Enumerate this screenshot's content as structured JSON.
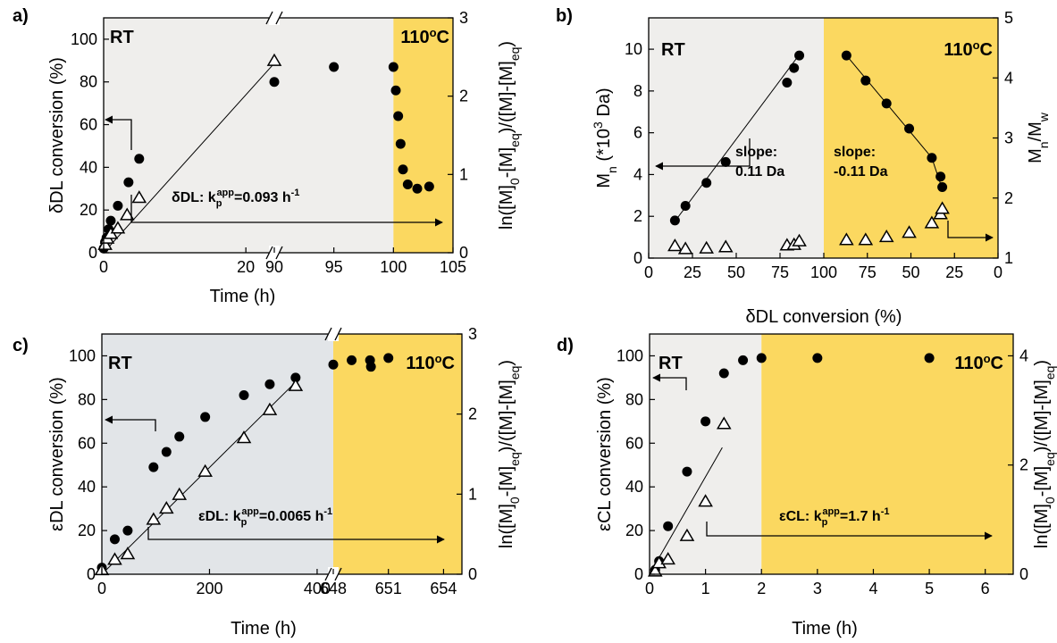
{
  "colors": {
    "rt_bg_grey": "#efeeec",
    "rt_bg_blue": "#e2e5e8",
    "hot_bg": "#fbd860",
    "ink": "#000000"
  },
  "panels": {
    "a": {
      "label": "a)",
      "rt": "RT",
      "temp": "110°C",
      "xlabel": "Time (h)",
      "ylabel": "δDL conversion (%)",
      "y2label": "ln([M]0-[M]eq)/([M]-[M]eq)",
      "xticks1": [
        "0",
        "20"
      ],
      "xticks2": [
        "90",
        "95",
        "100",
        "105"
      ],
      "yticks": [
        "0",
        "20",
        "40",
        "60",
        "80",
        "100"
      ],
      "y2ticks": [
        "0",
        "1",
        "2",
        "3"
      ],
      "annotation": "δDL: kpapp=0.093 h-1"
    },
    "b": {
      "label": "b)",
      "rt": "RT",
      "temp": "110°C",
      "xlabel": "δDL conversion (%)",
      "ylabel": "Mn (*10³ Da)",
      "y2label": "Mn/Mw",
      "xticks": [
        "0",
        "25",
        "50",
        "75",
        "100",
        "75",
        "50",
        "25",
        "0"
      ],
      "yticks": [
        "0",
        "2",
        "4",
        "6",
        "8",
        "10"
      ],
      "y2ticks": [
        "1",
        "2",
        "3",
        "4",
        "5"
      ],
      "slope1_a": "slope:",
      "slope1_b": "0.11 Da",
      "slope2_a": "slope:",
      "slope2_b": "-0.11 Da"
    },
    "c": {
      "label": "c)",
      "rt": "RT",
      "temp": "110°C",
      "xlabel": "Time (h)",
      "ylabel": "εDL conversion (%)",
      "y2label": "ln([M]0-[M]eq)/([M]-[M]eq)",
      "xticks1": [
        "0",
        "200",
        "400"
      ],
      "xticks2": [
        "648",
        "651",
        "654"
      ],
      "yticks": [
        "0",
        "20",
        "40",
        "60",
        "80",
        "100"
      ],
      "y2ticks": [
        "0",
        "1",
        "2",
        "3"
      ],
      "annotation": "εDL: kpapp=0.0065 h-1"
    },
    "d": {
      "label": "d)",
      "rt": "RT",
      "temp": "110°C",
      "xlabel": "Time (h)",
      "ylabel": "εCL conversion (%)",
      "y2label": "ln([M]0-[M]eq)/([M]-[M]eq)",
      "xticks": [
        "0",
        "1",
        "2",
        "3",
        "4",
        "5",
        "6"
      ],
      "yticks": [
        "0",
        "20",
        "40",
        "60",
        "80",
        "100"
      ],
      "y2ticks": [
        "0",
        "2",
        "4"
      ],
      "annotation": "εCL: kpapp=1.7 h-1"
    }
  },
  "chart_data": [
    {
      "panel": "a",
      "type": "scatter",
      "x_axis_break": [
        24,
        90
      ],
      "rt_to_110C_at": 100,
      "xlim": [
        0,
        105
      ],
      "ylim": [
        0,
        110
      ],
      "y2lim": [
        0,
        3
      ],
      "series": [
        {
          "marker": "filled circle",
          "axis": "left",
          "x": [
            0,
            0.2,
            0.4,
            0.7,
            1.0,
            2.0,
            3.5,
            5.0,
            24,
            30,
            95,
            100,
            100.2,
            100.4,
            100.6,
            100.8,
            101.2,
            102,
            103
          ],
          "y": [
            2,
            5,
            7,
            11,
            15,
            22,
            33,
            44,
            80,
            83,
            87,
            87,
            76,
            64,
            51,
            39,
            32,
            30,
            31
          ]
        },
        {
          "marker": "open triangle",
          "axis": "right",
          "x": [
            0.2,
            0.5,
            1.0,
            2.0,
            3.3,
            5.0,
            24
          ],
          "y": [
            0.1,
            0.18,
            0.24,
            0.31,
            0.48,
            0.7,
            2.45
          ]
        },
        {
          "marker": "line",
          "axis": "right",
          "x": [
            0,
            24
          ],
          "y": [
            0,
            2.42
          ]
        }
      ]
    },
    {
      "panel": "b",
      "type": "scatter",
      "rt_to_110C_at": "100% conversion",
      "ylim": [
        0,
        11.5
      ],
      "y2lim": [
        1,
        5
      ],
      "series": [
        {
          "marker": "filled circle",
          "axis": "left",
          "segment": "RT",
          "x": [
            15,
            21,
            33,
            44,
            79,
            83,
            86
          ],
          "y": [
            1.8,
            2.5,
            3.6,
            4.6,
            8.4,
            9.1,
            9.7
          ]
        },
        {
          "marker": "filled circle",
          "axis": "left",
          "segment": "110C",
          "x": [
            87,
            76,
            64,
            51,
            38,
            33,
            32
          ],
          "y": [
            9.7,
            8.5,
            7.4,
            6.2,
            4.8,
            3.9,
            3.4
          ]
        },
        {
          "marker": "open triangle",
          "axis": "right",
          "segment": "RT",
          "x": [
            15,
            21,
            33,
            44,
            79,
            83,
            86
          ],
          "y": [
            1.2,
            1.15,
            1.16,
            1.18,
            1.21,
            1.22,
            1.28
          ]
        },
        {
          "marker": "open triangle",
          "axis": "right",
          "segment": "110C",
          "x": [
            87,
            76,
            64,
            51,
            38,
            33,
            32
          ],
          "y": [
            1.3,
            1.3,
            1.35,
            1.42,
            1.58,
            1.73,
            1.82
          ]
        }
      ]
    },
    {
      "panel": "c",
      "type": "scatter",
      "x_axis_break": [
        400,
        648
      ],
      "rt_to_110C_at": 648,
      "xlim": [
        0,
        655
      ],
      "ylim": [
        0,
        110
      ],
      "y2lim": [
        0,
        3
      ],
      "series": [
        {
          "marker": "filled circle",
          "axis": "left",
          "x": [
            0,
            24,
            48,
            96,
            120,
            144,
            192,
            264,
            312,
            360,
            500,
            648,
            649,
            650,
            651
          ],
          "y": [
            3,
            16,
            20,
            49,
            56,
            63,
            72,
            82,
            87,
            90,
            95,
            96,
            98,
            98,
            99
          ]
        },
        {
          "marker": "open triangle",
          "axis": "right",
          "x": [
            0,
            24,
            48,
            96,
            120,
            144,
            192,
            264,
            312,
            360
          ],
          "y": [
            0.05,
            0.18,
            0.25,
            0.68,
            0.82,
            0.99,
            1.28,
            1.7,
            2.05,
            2.35
          ]
        },
        {
          "marker": "line",
          "axis": "right",
          "x": [
            0,
            360
          ],
          "y": [
            0,
            2.4
          ]
        }
      ]
    },
    {
      "panel": "d",
      "type": "scatter",
      "rt_to_110C_at": 2,
      "xlim": [
        0,
        6.5
      ],
      "ylim": [
        0,
        110
      ],
      "y2lim": [
        0,
        4.4
      ],
      "series": [
        {
          "marker": "filled circle",
          "axis": "left",
          "x": [
            0.1,
            0.17,
            0.33,
            0.67,
            1.0,
            1.33,
            1.67,
            2.0,
            3.0,
            5.0
          ],
          "y": [
            2,
            6,
            22,
            47,
            70,
            92,
            98,
            99,
            99,
            99
          ]
        },
        {
          "marker": "open triangle",
          "axis": "right",
          "x": [
            0.1,
            0.17,
            0.33,
            0.67,
            1.0,
            1.33
          ],
          "y": [
            0.05,
            0.2,
            0.27,
            0.7,
            1.33,
            2.75
          ]
        },
        {
          "marker": "line",
          "axis": "right",
          "x": [
            0,
            1.3
          ],
          "y": [
            0,
            2.32
          ]
        }
      ]
    }
  ]
}
